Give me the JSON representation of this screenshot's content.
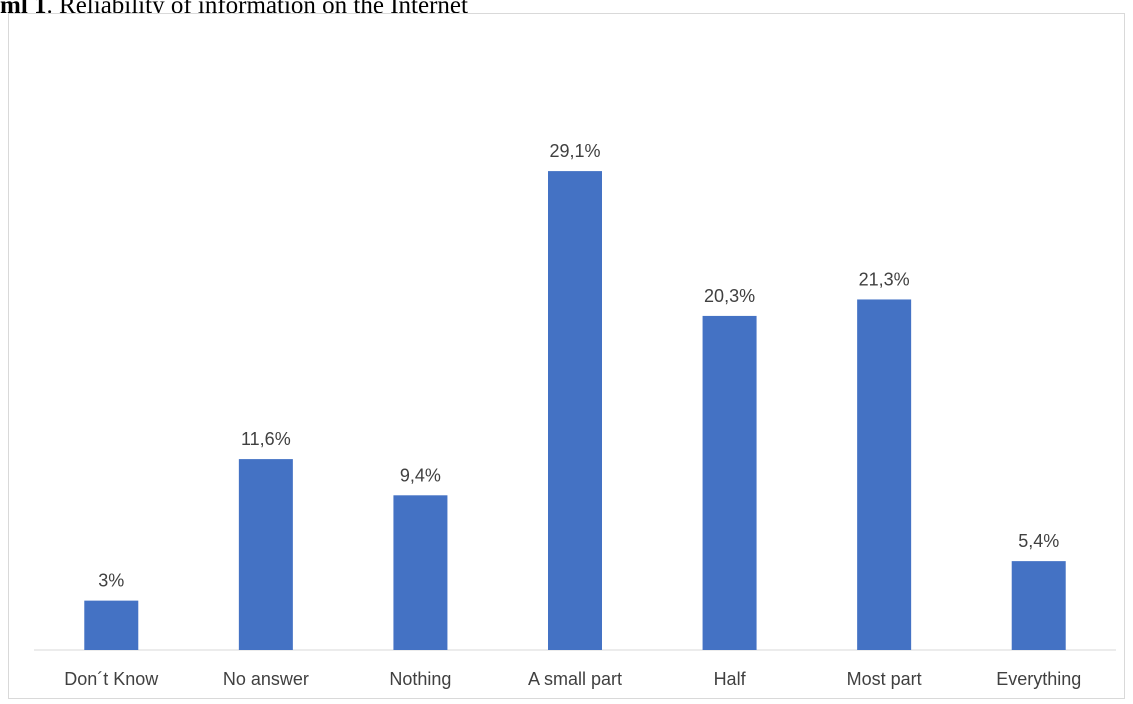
{
  "caption": {
    "label": "ml 1",
    "text": ". Reliability of information on the Internet"
  },
  "chart_data": {
    "type": "bar",
    "title": "",
    "xlabel": "",
    "ylabel": "",
    "categories": [
      "Don´t Know",
      "No answer",
      "Nothing",
      "A small part",
      "Half",
      "Most part",
      "Everything"
    ],
    "values": [
      3,
      11.6,
      9.4,
      29.1,
      20.3,
      21.3,
      5.4
    ],
    "value_labels": [
      "3%",
      "11,6%",
      "9,4%",
      "29,1%",
      "20,3%",
      "21,3%",
      "5,4%"
    ],
    "ylim": [
      0,
      35
    ],
    "grid": false,
    "legend": "none",
    "bar_color": "#4472c4",
    "axis_color": "#d9d9d9",
    "label_color": "#404040"
  }
}
